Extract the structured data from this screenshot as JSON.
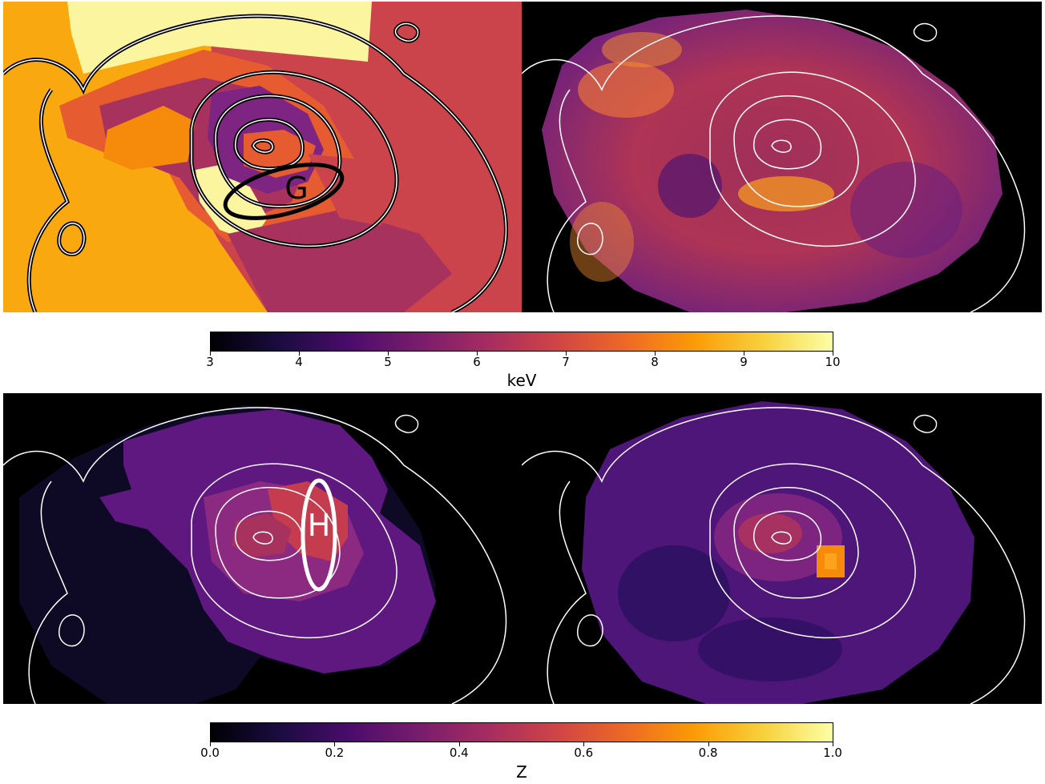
{
  "temperature_colorbar": {
    "unit": "keV",
    "ticks": [
      "3",
      "4",
      "5",
      "6",
      "7",
      "8",
      "9",
      "10"
    ],
    "colormap": "inferno"
  },
  "metallicity_colorbar": {
    "unit": "Z",
    "ticks": [
      "0.0",
      "0.2",
      "0.4",
      "0.6",
      "0.8",
      "1.0"
    ],
    "colormap": "inferno"
  },
  "regions": {
    "top_left_label": "G",
    "bottom_left_label": "H"
  },
  "colors": {
    "region_top": "#000000",
    "region_bottom": "#ffffff",
    "contour": "#ffffff",
    "contour_outline": "#000000",
    "background": "#000000"
  }
}
